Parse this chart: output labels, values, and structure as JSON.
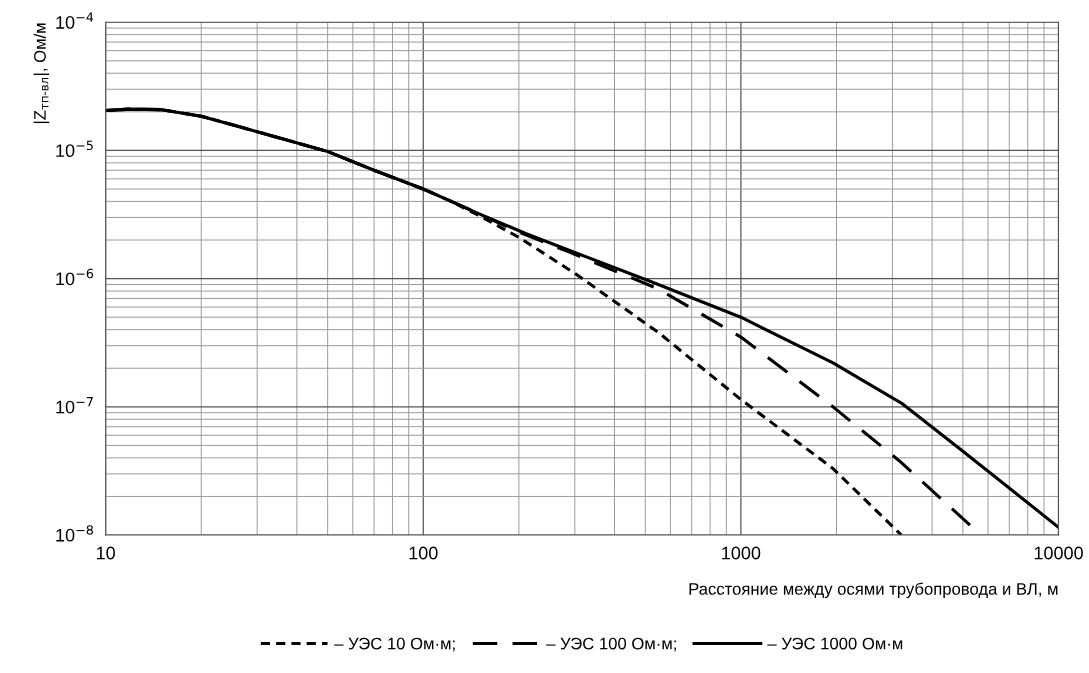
{
  "chart_data": {
    "type": "line",
    "ylabel": "|Z$_{тп-вл}$|, Ом/м",
    "xlabel": "Расстояние между осями трубопровода и ВЛ, м",
    "log": "xy",
    "grid": true,
    "legend": "bottom",
    "marker": "none",
    "xlim": [
      10,
      10000
    ],
    "xticks": [
      10,
      100,
      1000,
      10000
    ],
    "ylim": [
      1e-08,
      0.0001
    ],
    "yticks": [
      {
        "value": 1e-08,
        "label": "10$^{−8}$"
      },
      {
        "value": 1e-07,
        "label": "10$^{−7}$"
      },
      {
        "value": 1e-06,
        "label": "10$^{−6}$"
      },
      {
        "value": 1e-05,
        "label": "10$^{−5}$"
      },
      {
        "value": 0.0001,
        "label": "10$^{−4}$"
      }
    ],
    "series": [
      {
        "name": "– УЭС 10 Ом·м;",
        "color": "#000000",
        "line_style": "dotted",
        "x": [
          10,
          12,
          15,
          20,
          30,
          50,
          70,
          100,
          120,
          150,
          200,
          300,
          550,
          1000,
          1950,
          3200
        ],
        "values": [
          2.05e-05,
          2.1e-05,
          2.08e-05,
          1.85e-05,
          1.4e-05,
          9.8e-06,
          7e-06,
          5e-06,
          4.1e-06,
          3.1e-06,
          2.1e-06,
          1.1e-06,
          3.8e-07,
          1.14e-07,
          3.3e-08,
          1e-08
        ]
      },
      {
        "name": "– УЭС 100 Ом·м;",
        "color": "#000000",
        "line_style": "dashed",
        "x": [
          10,
          12,
          15,
          20,
          30,
          50,
          70,
          100,
          120,
          150,
          200,
          290,
          550,
          1000,
          1950,
          3150,
          5700
        ],
        "values": [
          2.05e-05,
          2.1e-05,
          2.08e-05,
          1.85e-05,
          1.4e-05,
          9.8e-06,
          7e-06,
          5e-06,
          4.1e-06,
          3.2e-06,
          2.3e-06,
          1.6e-06,
          8.3e-07,
          3.5e-07,
          1e-07,
          3.8e-08,
          1e-08
        ]
      },
      {
        "name": "– УЭС 1000 Ом·м",
        "color": "#000000",
        "line_style": "solid",
        "x": [
          10,
          12,
          15,
          20,
          30,
          50,
          70,
          100,
          120,
          150,
          210,
          300,
          520,
          1000,
          1950,
          3200,
          5000,
          10000
        ],
        "values": [
          2.05e-05,
          2.1e-05,
          2.08e-05,
          1.85e-05,
          1.4e-05,
          9.8e-06,
          7e-06,
          5e-06,
          4.1e-06,
          3.2e-06,
          2.25e-06,
          1.6e-06,
          9.5e-07,
          5e-07,
          2.2e-07,
          1.07e-07,
          4.5e-08,
          1.15e-08
        ]
      }
    ]
  }
}
